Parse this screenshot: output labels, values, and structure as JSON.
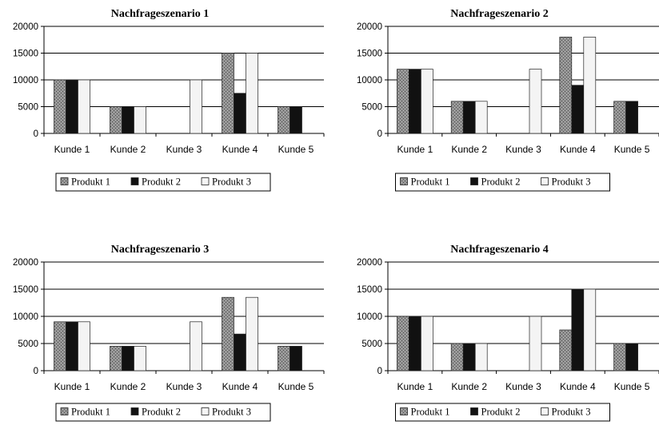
{
  "chart_data": [
    {
      "type": "bar",
      "title": "Nachfrageszenario 1",
      "categories": [
        "Kunde 1",
        "Kunde 2",
        "Kunde 3",
        "Kunde 4",
        "Kunde 5"
      ],
      "series": [
        {
          "name": "Produkt 1",
          "values": [
            10000,
            5000,
            0,
            15000,
            5000
          ]
        },
        {
          "name": "Produkt 2",
          "values": [
            10000,
            5000,
            0,
            7500,
            5000
          ]
        },
        {
          "name": "Produkt 3",
          "values": [
            10000,
            5000,
            10000,
            15000,
            0
          ]
        }
      ],
      "yticks": [
        "0",
        "5000",
        "10000",
        "15000",
        "20000"
      ],
      "ylim": [
        0,
        20000
      ],
      "grid": true,
      "legend": "bottom"
    },
    {
      "type": "bar",
      "title": "Nachfrageszenario 2",
      "categories": [
        "Kunde 1",
        "Kunde 2",
        "Kunde 3",
        "Kunde 4",
        "Kunde 5"
      ],
      "series": [
        {
          "name": "Produkt 1",
          "values": [
            12000,
            6000,
            0,
            18000,
            6000
          ]
        },
        {
          "name": "Produkt 2",
          "values": [
            12000,
            6000,
            0,
            9000,
            6000
          ]
        },
        {
          "name": "Produkt 3",
          "values": [
            12000,
            6000,
            12000,
            18000,
            0
          ]
        }
      ],
      "yticks": [
        "0",
        "5000",
        "10000",
        "15000",
        "20000"
      ],
      "ylim": [
        0,
        20000
      ],
      "grid": true,
      "legend": "bottom"
    },
    {
      "type": "bar",
      "title": "Nachfrageszenario 3",
      "categories": [
        "Kunde 1",
        "Kunde 2",
        "Kunde 3",
        "Kunde 4",
        "Kunde 5"
      ],
      "series": [
        {
          "name": "Produkt 1",
          "values": [
            9000,
            4500,
            0,
            13500,
            4500
          ]
        },
        {
          "name": "Produkt 2",
          "values": [
            9000,
            4500,
            0,
            6750,
            4500
          ]
        },
        {
          "name": "Produkt 3",
          "values": [
            9000,
            4500,
            9000,
            13500,
            0
          ]
        }
      ],
      "yticks": [
        "0",
        "5000",
        "10000",
        "15000",
        "20000"
      ],
      "ylim": [
        0,
        20000
      ],
      "grid": true,
      "legend": "bottom"
    },
    {
      "type": "bar",
      "title": "Nachfrageszenario 4",
      "categories": [
        "Kunde 1",
        "Kunde 2",
        "Kunde 3",
        "Kunde 4",
        "Kunde 5"
      ],
      "series": [
        {
          "name": "Produkt 1",
          "values": [
            10000,
            5000,
            0,
            7500,
            5000
          ]
        },
        {
          "name": "Produkt 2",
          "values": [
            10000,
            5000,
            0,
            15000,
            5000
          ]
        },
        {
          "name": "Produkt 3",
          "values": [
            10000,
            5000,
            10000,
            15000,
            0
          ]
        }
      ],
      "yticks": [
        "0",
        "5000",
        "10000",
        "15000",
        "20000"
      ],
      "ylim": [
        0,
        20000
      ],
      "grid": true,
      "legend": "bottom"
    }
  ],
  "colors": {
    "series": [
      "#8a8a8a",
      "#111111",
      "#f4f4f4"
    ],
    "edge": "#222222",
    "grid": "#000000"
  }
}
